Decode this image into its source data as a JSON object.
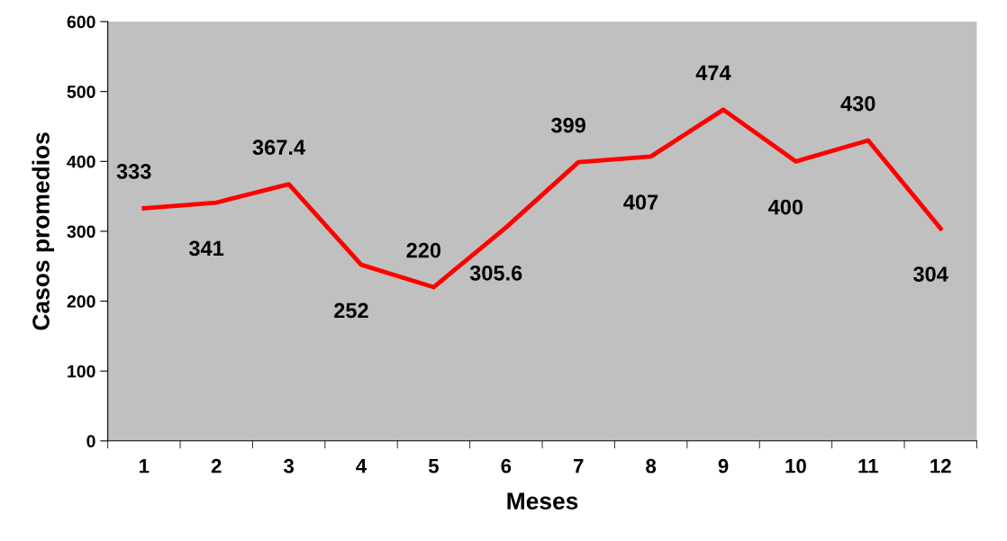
{
  "chart_data": {
    "type": "line",
    "xlabel": "Meses",
    "ylabel": "Casos promedios",
    "categories": [
      "1",
      "2",
      "3",
      "4",
      "5",
      "6",
      "7",
      "8",
      "9",
      "10",
      "11",
      "12"
    ],
    "series": [
      {
        "color": "#ff0000",
        "values": [
          333,
          341,
          367.4,
          252,
          220,
          305.6,
          399,
          407,
          474,
          400,
          430,
          304
        ]
      }
    ],
    "ylim": [
      0,
      600
    ],
    "yticks": [
      0,
      100,
      200,
      300,
      400,
      500,
      600
    ],
    "data_labels": true,
    "grid": false,
    "legend": false,
    "marker": "none",
    "line_style": "solid"
  }
}
